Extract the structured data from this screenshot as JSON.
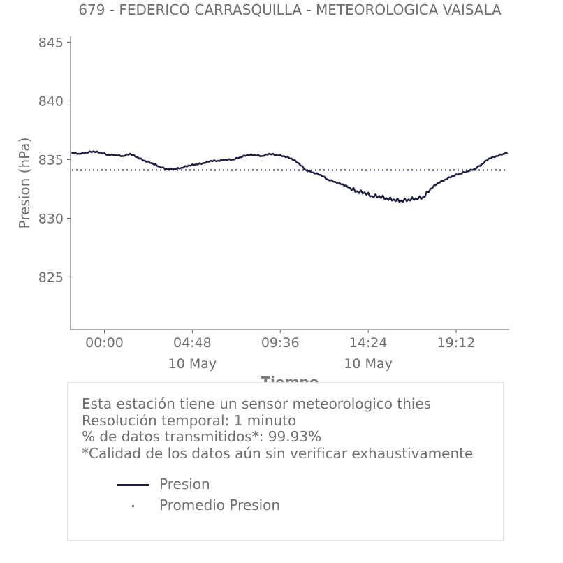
{
  "chart_data": {
    "type": "line",
    "title": "679 - FEDERICO CARRASQUILLA - METEOROLOGICA VAISALA",
    "xlabel": "Tiempo",
    "ylabel": "Presion (hPa)",
    "ylim": [
      820.5,
      845.5
    ],
    "yticks": [
      845,
      840,
      835,
      830,
      825
    ],
    "xticks": [
      {
        "label": "00:00",
        "sublabel": ""
      },
      {
        "label": "04:48",
        "sublabel": "10 May"
      },
      {
        "label": "09:36",
        "sublabel": ""
      },
      {
        "label": "14:24",
        "sublabel": "10 May"
      },
      {
        "label": "19:12",
        "sublabel": ""
      }
    ],
    "x_unit": "hours since 10 May 00:00",
    "xlim": [
      -1.85,
      22.1
    ],
    "grid": false,
    "series": [
      {
        "name": "Presion",
        "color": "#1f2041",
        "style": "solid",
        "x": [
          -1.8,
          -1.4,
          -1.0,
          -0.6,
          -0.2,
          0.2,
          0.6,
          1.0,
          1.4,
          1.8,
          2.2,
          2.6,
          3.0,
          3.4,
          3.8,
          4.2,
          4.6,
          5.0,
          5.4,
          5.8,
          6.2,
          6.6,
          7.0,
          7.4,
          7.8,
          8.2,
          8.6,
          9.0,
          9.4,
          9.8,
          10.2,
          10.6,
          11.0,
          11.4,
          11.8,
          12.2,
          12.6,
          13.0,
          13.4,
          13.8,
          14.2,
          14.6,
          15.0,
          15.4,
          15.8,
          16.2,
          16.6,
          17.0,
          17.4,
          17.8,
          18.2,
          18.6,
          19.0,
          19.4,
          19.8,
          20.2,
          20.6,
          21.0,
          21.4,
          21.8,
          22.0
        ],
        "values": [
          835.6,
          835.5,
          835.6,
          835.7,
          835.6,
          835.4,
          835.4,
          835.3,
          835.5,
          835.2,
          834.9,
          834.7,
          834.4,
          834.2,
          834.2,
          834.3,
          834.5,
          834.6,
          834.7,
          834.9,
          834.9,
          835.0,
          835.0,
          835.2,
          835.4,
          835.4,
          835.3,
          835.5,
          835.4,
          835.3,
          835.1,
          834.7,
          834.1,
          833.9,
          833.7,
          833.3,
          833.1,
          832.9,
          832.6,
          832.3,
          832.2,
          831.9,
          831.9,
          831.7,
          831.6,
          831.5,
          831.6,
          831.7,
          831.8,
          832.5,
          833.0,
          833.3,
          833.6,
          833.8,
          834.0,
          834.2,
          834.6,
          835.1,
          835.3,
          835.5,
          835.6
        ]
      },
      {
        "name": "Promedio Presion",
        "color": "#1f2041",
        "style": "dotted",
        "values": [
          834.1
        ]
      }
    ]
  },
  "info_box": {
    "lines": [
      "Esta estación tiene un sensor meteorologico thies",
      "Resolución temporal: 1 minuto",
      "% de datos transmitidos*: 99.93%",
      "*Calidad de los datos aún sin verificar exhaustivamente"
    ],
    "legend": [
      {
        "label": "Presion",
        "marker": "line"
      },
      {
        "label": "Promedio Presion",
        "marker": "dot"
      }
    ]
  }
}
